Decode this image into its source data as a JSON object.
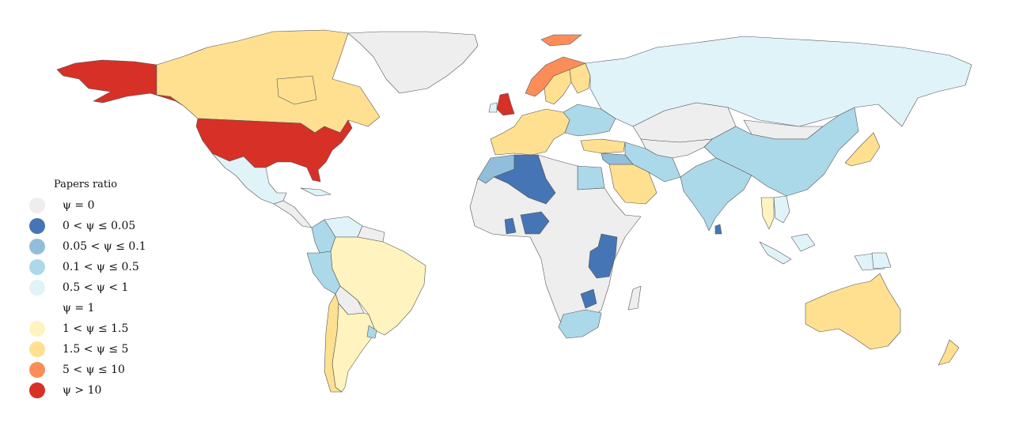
{
  "legend": {
    "title": "Papers ratio",
    "items": [
      {
        "label": "ψ = 0",
        "color": "#eeeeee"
      },
      {
        "label": "0 < ψ ≤ 0.05",
        "color": "#4575b4"
      },
      {
        "label": "0.05 < ψ ≤ 0.1",
        "color": "#91bfdb"
      },
      {
        "label": "0.1 < ψ ≤ 0.5",
        "color": "#abd9e9"
      },
      {
        "label": "0.5 < ψ < 1",
        "color": "#e0f3f8"
      },
      {
        "label": "ψ = 1",
        "color": "#ffffff"
      },
      {
        "label": "1 < ψ ≤ 1.5",
        "color": "#fff3bf"
      },
      {
        "label": "1.5 < ψ ≤ 5",
        "color": "#fee090"
      },
      {
        "label": "5 < ψ ≤ 10",
        "color": "#fc8d59"
      },
      {
        "label": "ψ > 10",
        "color": "#d73027"
      }
    ]
  },
  "regions": [
    {
      "name": "Alaska (USA)",
      "class": "ψ > 10"
    },
    {
      "name": "Canada",
      "class": "1.5 < ψ ≤ 5"
    },
    {
      "name": "Greenland",
      "class": "ψ = 0"
    },
    {
      "name": "United States",
      "class": "ψ > 10"
    },
    {
      "name": "Mexico",
      "class": "0.5 < ψ < 1"
    },
    {
      "name": "Central America",
      "class": "ψ = 0"
    },
    {
      "name": "Colombia",
      "class": "0.1 < ψ ≤ 0.5"
    },
    {
      "name": "Venezuela",
      "class": "0.5 < ψ < 1"
    },
    {
      "name": "Peru",
      "class": "0.1 < ψ ≤ 0.5"
    },
    {
      "name": "Brazil",
      "class": "1 < ψ ≤ 1.5"
    },
    {
      "name": "Bolivia",
      "class": "ψ = 0"
    },
    {
      "name": "Chile",
      "class": "1.5 < ψ ≤ 5"
    },
    {
      "name": "Argentina",
      "class": "1 < ψ ≤ 1.5"
    },
    {
      "name": "Uruguay",
      "class": "0.1 < ψ ≤ 0.5"
    },
    {
      "name": "United Kingdom",
      "class": "ψ > 10"
    },
    {
      "name": "Ireland",
      "class": "0.5 < ψ < 1"
    },
    {
      "name": "Norway",
      "class": "5 < ψ ≤ 10"
    },
    {
      "name": "Svalbard",
      "class": "5 < ψ ≤ 10"
    },
    {
      "name": "Sweden",
      "class": "1.5 < ψ ≤ 5"
    },
    {
      "name": "Finland",
      "class": "1.5 < ψ ≤ 5"
    },
    {
      "name": "Western Europe",
      "class": "1.5 < ψ ≤ 5"
    },
    {
      "name": "Eastern Europe",
      "class": "0.1 < ψ ≤ 0.5"
    },
    {
      "name": "Turkey",
      "class": "1.5 < ψ ≤ 5"
    },
    {
      "name": "Russia",
      "class": "0.5 < ψ < 1"
    },
    {
      "name": "Kazakhstan",
      "class": "ψ = 0"
    },
    {
      "name": "Mongolia",
      "class": "ψ = 0"
    },
    {
      "name": "China",
      "class": "0.1 < ψ ≤ 0.5"
    },
    {
      "name": "Iran",
      "class": "0.1 < ψ ≤ 0.5"
    },
    {
      "name": "Saudi Arabia",
      "class": "1.5 < ψ ≤ 5"
    },
    {
      "name": "Egypt",
      "class": "0.1 < ψ ≤ 0.5"
    },
    {
      "name": "Morocco",
      "class": "0.05 < ψ ≤ 0.1"
    },
    {
      "name": "Algeria",
      "class": "0 < ψ ≤ 0.05"
    },
    {
      "name": "Nigeria",
      "class": "0 < ψ ≤ 0.05"
    },
    {
      "name": "Ghana",
      "class": "0 < ψ ≤ 0.05"
    },
    {
      "name": "Kenya / Tanzania",
      "class": "0 < ψ ≤ 0.05"
    },
    {
      "name": "Zimbabwe",
      "class": "0 < ψ ≤ 0.05"
    },
    {
      "name": "South Africa",
      "class": "0.1 < ψ ≤ 0.5"
    },
    {
      "name": "Africa (other)",
      "class": "ψ = 0"
    },
    {
      "name": "India",
      "class": "0.1 < ψ ≤ 0.5"
    },
    {
      "name": "Sri Lanka",
      "class": "0 < ψ ≤ 0.05"
    },
    {
      "name": "Thailand",
      "class": "1 < ψ ≤ 1.5"
    },
    {
      "name": "Southeast Asia",
      "class": "0.5 < ψ < 1"
    },
    {
      "name": "Japan",
      "class": "1.5 < ψ ≤ 5"
    },
    {
      "name": "Australia",
      "class": "1.5 < ψ ≤ 5"
    },
    {
      "name": "New Zealand",
      "class": "1.5 < ψ ≤ 5"
    },
    {
      "name": "Papua New Guinea",
      "class": "0.5 < ψ < 1"
    }
  ]
}
